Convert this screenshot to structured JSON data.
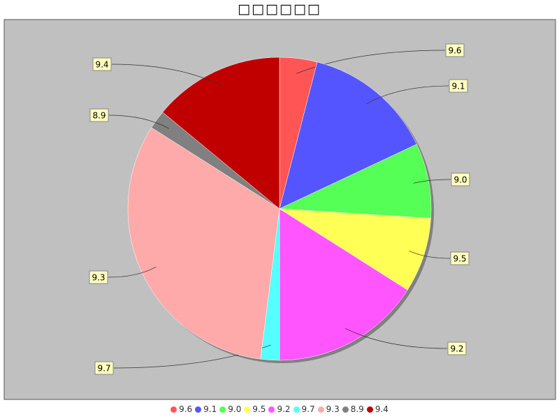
{
  "chart_data": {
    "type": "pie",
    "title": "□□□□□□",
    "categories": [
      "9.6",
      "9.1",
      "9.0",
      "9.5",
      "9.2",
      "9.7",
      "9.3",
      "8.9",
      "9.4"
    ],
    "values": [
      2,
      7,
      4,
      4,
      8,
      1,
      16,
      1,
      7
    ],
    "colors": [
      "#ff5555",
      "#5555ff",
      "#55ff55",
      "#ffff55",
      "#ff55ff",
      "#55ffff",
      "#ffaaaa",
      "#808080",
      "#c00000"
    ],
    "background": "#c0c0c0",
    "start_angle": "12 o'clock, clockwise",
    "legend": "bottom",
    "labels_show": "category"
  }
}
